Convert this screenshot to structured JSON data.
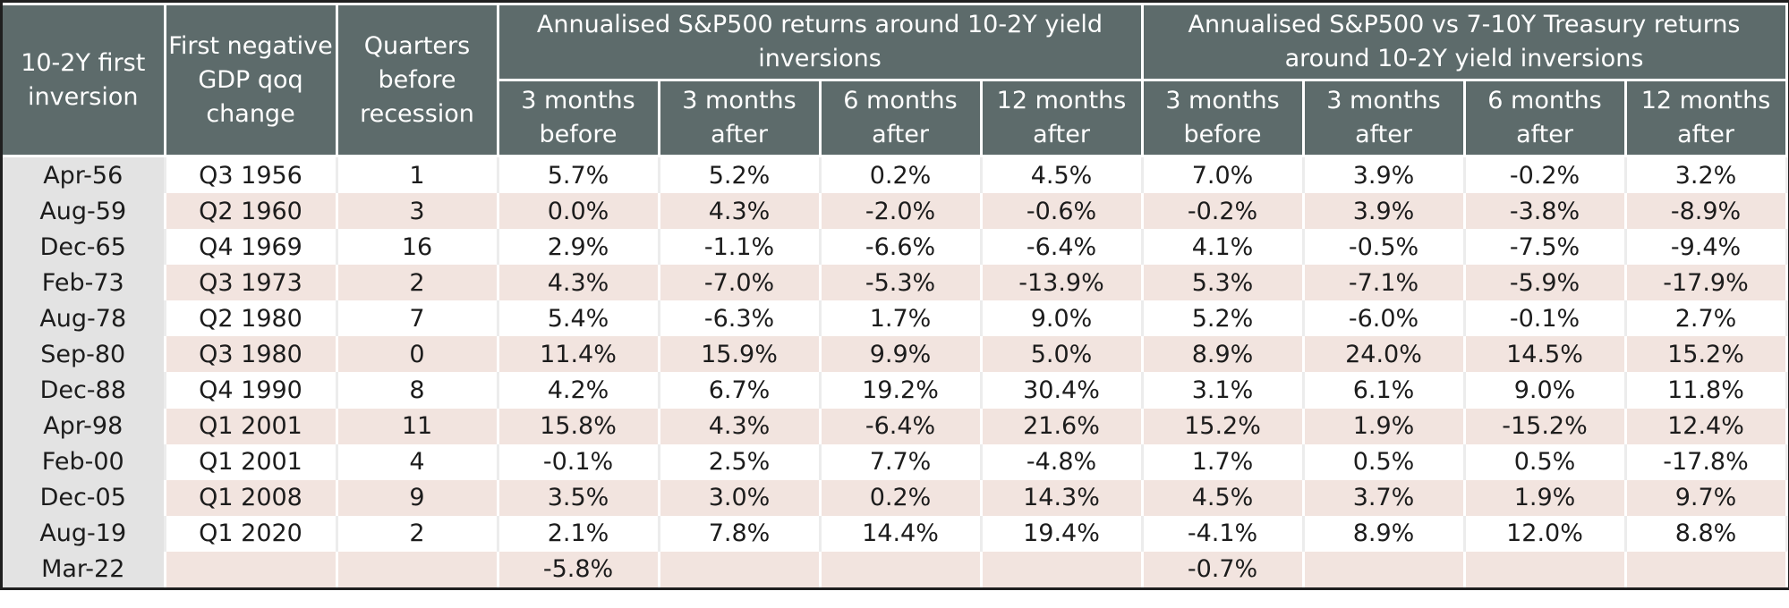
{
  "headers": {
    "first_inversion": "10-2Y first inversion",
    "first_negative_gdp": "First negative GDP qoq change",
    "quarters_before": "Quarters before recession",
    "group_sp500": "Annualised S&P500 returns around 10-2Y yield inversions",
    "group_sp500_vs_treasury": "Annualised S&P500 vs 7-10Y Treasury returns around 10-2Y yield inversions",
    "periods": [
      "3 months before",
      "3 months after",
      "6 months after",
      "12 months after",
      "3 months before",
      "3 months after",
      "6 months after",
      "12 months after"
    ]
  },
  "rows": [
    [
      "Apr-56",
      "Q3 1956",
      "1",
      "5.7%",
      "5.2%",
      "0.2%",
      "4.5%",
      "7.0%",
      "3.9%",
      "-0.2%",
      "3.2%"
    ],
    [
      "Aug-59",
      "Q2 1960",
      "3",
      "0.0%",
      "4.3%",
      "-2.0%",
      "-0.6%",
      "-0.2%",
      "3.9%",
      "-3.8%",
      "-8.9%"
    ],
    [
      "Dec-65",
      "Q4 1969",
      "16",
      "2.9%",
      "-1.1%",
      "-6.6%",
      "-6.4%",
      "4.1%",
      "-0.5%",
      "-7.5%",
      "-9.4%"
    ],
    [
      "Feb-73",
      "Q3 1973",
      "2",
      "4.3%",
      "-7.0%",
      "-5.3%",
      "-13.9%",
      "5.3%",
      "-7.1%",
      "-5.9%",
      "-17.9%"
    ],
    [
      "Aug-78",
      "Q2 1980",
      "7",
      "5.4%",
      "-6.3%",
      "1.7%",
      "9.0%",
      "5.2%",
      "-6.0%",
      "-0.1%",
      "2.7%"
    ],
    [
      "Sep-80",
      "Q3 1980",
      "0",
      "11.4%",
      "15.9%",
      "9.9%",
      "5.0%",
      "8.9%",
      "24.0%",
      "14.5%",
      "15.2%"
    ],
    [
      "Dec-88",
      "Q4 1990",
      "8",
      "4.2%",
      "6.7%",
      "19.2%",
      "30.4%",
      "3.1%",
      "6.1%",
      "9.0%",
      "11.8%"
    ],
    [
      "Apr-98",
      "Q1 2001",
      "11",
      "15.8%",
      "4.3%",
      "-6.4%",
      "21.6%",
      "15.2%",
      "1.9%",
      "-15.2%",
      "12.4%"
    ],
    [
      "Feb-00",
      "Q1 2001",
      "4",
      "-0.1%",
      "2.5%",
      "7.7%",
      "-4.8%",
      "1.7%",
      "0.5%",
      "0.5%",
      "-17.8%"
    ],
    [
      "Dec-05",
      "Q1 2008",
      "9",
      "3.5%",
      "3.0%",
      "0.2%",
      "14.3%",
      "4.5%",
      "3.7%",
      "1.9%",
      "9.7%"
    ],
    [
      "Aug-19",
      "Q1 2020",
      "2",
      "2.1%",
      "7.8%",
      "14.4%",
      "19.4%",
      "-4.1%",
      "8.9%",
      "12.0%",
      "8.8%"
    ],
    [
      "Mar-22",
      "",
      "",
      "-5.8%",
      "",
      "",
      "",
      "-0.7%",
      "",
      "",
      ""
    ]
  ],
  "colors": {
    "header_bg": "#5d6b6b",
    "row_tint": "#f2e4df",
    "first_col_bg": "#e3e3e3"
  }
}
